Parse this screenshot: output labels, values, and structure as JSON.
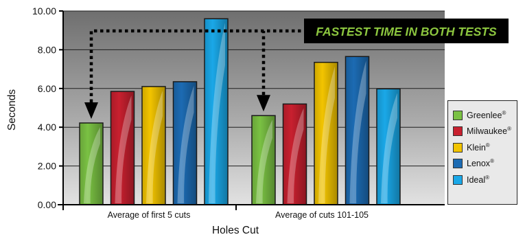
{
  "chart_data": {
    "type": "bar",
    "categories": [
      "Average of first 5 cuts",
      "Average of cuts 101-105"
    ],
    "series": [
      {
        "name": "Greenlee",
        "color": "#7ac143",
        "values": [
          4.22,
          4.6
        ]
      },
      {
        "name": "Milwaukee",
        "color": "#c8202f",
        "values": [
          5.85,
          5.2
        ]
      },
      {
        "name": "Klein",
        "color": "#f2c400",
        "values": [
          6.1,
          7.35
        ]
      },
      {
        "name": "Lenox",
        "color": "#1c6bb3",
        "values": [
          6.35,
          7.65
        ]
      },
      {
        "name": "Ideal",
        "color": "#1aa8e8",
        "values": [
          9.6,
          5.98
        ]
      }
    ],
    "registered_mark": "®",
    "xlabel": "Holes Cut",
    "ylabel": "Seconds",
    "ylim": [
      0,
      10
    ],
    "yticks": [
      "0.00",
      "2.00",
      "4.00",
      "6.00",
      "8.00",
      "10.00"
    ],
    "grid": true,
    "legend_position": "right",
    "annotation": "FASTEST TIME IN BOTH TESTS",
    "annotation_color": "#8cc63f",
    "annotation_background": "#000000",
    "plot_background": "#8a8a8a"
  }
}
